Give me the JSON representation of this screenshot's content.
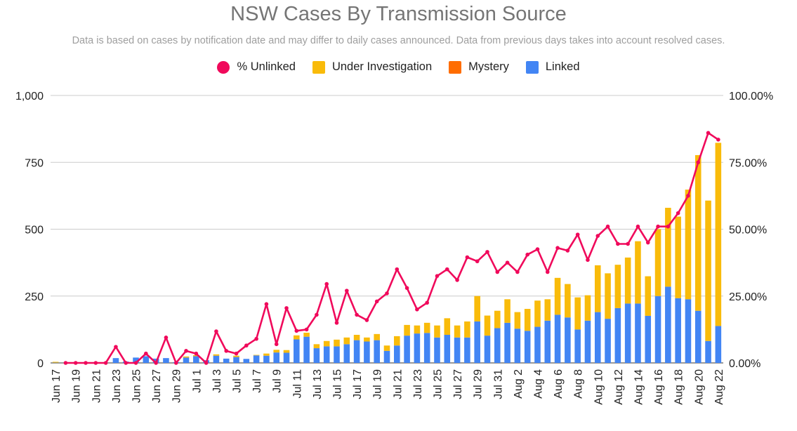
{
  "chart_data": {
    "type": "bar",
    "title": "NSW Cases By Transmission Source",
    "subtitle": "Data is based on cases by notification date and may differ to daily cases announced. Data from previous days takes into account resolved cases.",
    "legend_position": "top",
    "grid": true,
    "y_left": {
      "ticks": [
        "0",
        "250",
        "500",
        "750",
        "1,000"
      ],
      "ylim": [
        0,
        1000
      ]
    },
    "y_right": {
      "ticks": [
        "0.00%",
        "25.00%",
        "50.00%",
        "75.00%",
        "100.00%"
      ],
      "ylim": [
        0,
        100
      ]
    },
    "x_tick_labels": [
      "Jun 17",
      "Jun 19",
      "Jun 21",
      "Jun 23",
      "Jun 25",
      "Jun 27",
      "Jun 29",
      "Jul 1",
      "Jul 3",
      "Jul 5",
      "Jul 7",
      "Jul 9",
      "Jul 11",
      "Jul 13",
      "Jul 15",
      "Jul 17",
      "Jul 19",
      "Jul 21",
      "Jul 23",
      "Jul 25",
      "Jul 27",
      "Jul 29",
      "Jul 31",
      "Aug 2",
      "Aug 4",
      "Aug 6",
      "Aug 8",
      "Aug 10",
      "Aug 12",
      "Aug 14",
      "Aug 16",
      "Aug 18",
      "Aug 20",
      "Aug 22"
    ],
    "x": [
      "Jun 17",
      "Jun 18",
      "Jun 19",
      "Jun 20",
      "Jun 21",
      "Jun 22",
      "Jun 23",
      "Jun 24",
      "Jun 25",
      "Jun 26",
      "Jun 27",
      "Jun 28",
      "Jun 29",
      "Jun 30",
      "Jul 1",
      "Jul 2",
      "Jul 3",
      "Jul 4",
      "Jul 5",
      "Jul 6",
      "Jul 7",
      "Jul 8",
      "Jul 9",
      "Jul 10",
      "Jul 11",
      "Jul 12",
      "Jul 13",
      "Jul 14",
      "Jul 15",
      "Jul 16",
      "Jul 17",
      "Jul 18",
      "Jul 19",
      "Jul 20",
      "Jul 21",
      "Jul 22",
      "Jul 23",
      "Jul 24",
      "Jul 25",
      "Jul 26",
      "Jul 27",
      "Jul 28",
      "Jul 29",
      "Jul 30",
      "Jul 31",
      "Aug 1",
      "Aug 2",
      "Aug 3",
      "Aug 4",
      "Aug 5",
      "Aug 6",
      "Aug 7",
      "Aug 8",
      "Aug 9",
      "Aug 10",
      "Aug 11",
      "Aug 12",
      "Aug 13",
      "Aug 14",
      "Aug 15",
      "Aug 16",
      "Aug 17",
      "Aug 18",
      "Aug 19",
      "Aug 20",
      "Aug 21",
      "Aug 22"
    ],
    "series": [
      {
        "name": "Linked",
        "type": "bar",
        "axis": "left",
        "color": "#4285f4",
        "values": [
          1,
          0,
          0,
          0,
          0,
          0,
          18,
          5,
          20,
          25,
          16,
          18,
          3,
          20,
          25,
          10,
          27,
          16,
          22,
          15,
          28,
          27,
          39,
          38,
          88,
          98,
          55,
          62,
          62,
          70,
          85,
          80,
          85,
          45,
          65,
          102,
          110,
          112,
          95,
          105,
          95,
          95,
          155,
          102,
          130,
          150,
          128,
          120,
          135,
          158,
          180,
          170,
          125,
          158,
          190,
          165,
          205,
          222,
          222,
          176,
          250,
          285,
          242,
          238,
          195,
          82,
          138
        ]
      },
      {
        "name": "Mystery",
        "type": "bar",
        "axis": "left",
        "color": "#ff6d00",
        "values": [
          0,
          0,
          0,
          0,
          0,
          0,
          0,
          0,
          0,
          0,
          0,
          0,
          0,
          0,
          0,
          0,
          0,
          0,
          0,
          0,
          0,
          0,
          0,
          0,
          0,
          0,
          0,
          0,
          0,
          0,
          0,
          0,
          0,
          0,
          0,
          0,
          0,
          0,
          0,
          0,
          0,
          0,
          0,
          0,
          0,
          0,
          0,
          0,
          0,
          0,
          0,
          0,
          0,
          0,
          0,
          0,
          0,
          0,
          0,
          0,
          0,
          0,
          0,
          0,
          0,
          0,
          0
        ]
      },
      {
        "name": "Under Investigation",
        "type": "bar",
        "axis": "left",
        "color": "#f9bb0a",
        "values": [
          3,
          0,
          0,
          0,
          0,
          0,
          0,
          0,
          0,
          0,
          0,
          0,
          0,
          4,
          4,
          0,
          5,
          0,
          5,
          0,
          2,
          8,
          10,
          10,
          15,
          15,
          15,
          20,
          25,
          25,
          20,
          15,
          23,
          20,
          35,
          40,
          30,
          38,
          45,
          62,
          45,
          60,
          95,
          75,
          65,
          88,
          62,
          82,
          98,
          80,
          138,
          125,
          120,
          95,
          175,
          170,
          162,
          172,
          233,
          148,
          250,
          295,
          305,
          410,
          582,
          525,
          685
        ]
      },
      {
        "name": "% Unlinked",
        "type": "line",
        "axis": "right",
        "color": "#f0095b",
        "values": [
          null,
          0,
          0,
          0,
          0,
          0,
          6,
          0,
          0,
          3.5,
          0,
          9.5,
          0,
          4.5,
          3.5,
          0,
          11.8,
          4.5,
          3.5,
          6.5,
          9,
          22,
          7,
          20.5,
          12,
          12.5,
          18,
          29.5,
          15,
          27,
          18,
          16,
          23,
          26,
          35,
          28,
          20,
          22.5,
          32.5,
          35,
          31,
          39.5,
          38,
          41.5,
          34,
          37.5,
          34,
          40.5,
          42.5,
          34,
          43,
          42,
          48,
          38.5,
          47.5,
          51,
          44.5,
          44.5,
          51,
          45,
          51,
          51,
          56,
          62.5,
          75,
          86,
          83.5
        ]
      }
    ]
  }
}
